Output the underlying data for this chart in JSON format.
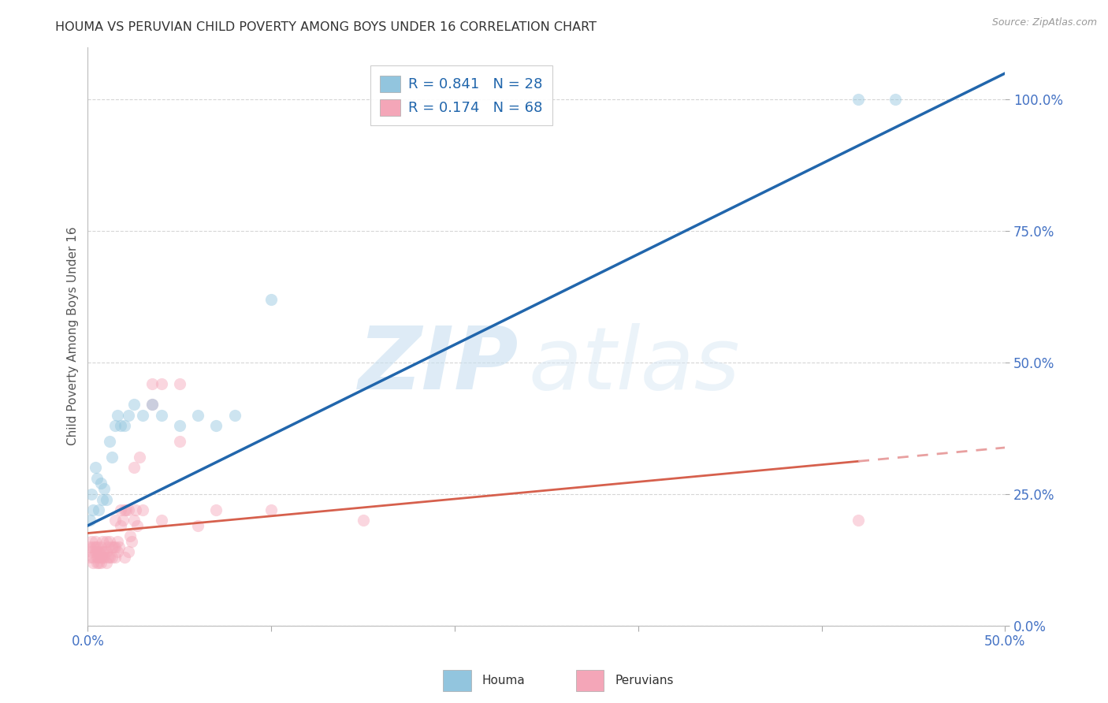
{
  "title": "HOUMA VS PERUVIAN CHILD POVERTY AMONG BOYS UNDER 16 CORRELATION CHART",
  "source": "Source: ZipAtlas.com",
  "ylabel": "Child Poverty Among Boys Under 16",
  "xlim": [
    0.0,
    0.5
  ],
  "ylim": [
    0.0,
    1.1
  ],
  "xticks": [
    0.0,
    0.1,
    0.2,
    0.3,
    0.4,
    0.5
  ],
  "xticklabels_show": [
    "0.0%",
    "",
    "",
    "",
    "",
    "50.0%"
  ],
  "yticks": [
    0.0,
    0.25,
    0.5,
    0.75,
    1.0
  ],
  "yticklabels": [
    "0.0%",
    "25.0%",
    "50.0%",
    "75.0%",
    "100.0%"
  ],
  "houma_color": "#92c5de",
  "peruvian_color": "#f4a6b8",
  "houma_line_color": "#2166ac",
  "peruvian_line_color": "#d6604d",
  "peruvian_line_color_dash": "#e8a0a0",
  "legend_r1": "R = 0.841   N = 28",
  "legend_r2": "R = 0.174   N = 68",
  "legend_label1": "Houma",
  "legend_label2": "Peruvians",
  "watermark_zip": "ZIP",
  "watermark_atlas": "atlas",
  "houma_x": [
    0.001,
    0.002,
    0.003,
    0.004,
    0.005,
    0.006,
    0.007,
    0.008,
    0.009,
    0.01,
    0.012,
    0.013,
    0.015,
    0.016,
    0.018,
    0.02,
    0.022,
    0.025,
    0.03,
    0.035,
    0.04,
    0.05,
    0.06,
    0.07,
    0.08,
    0.1,
    0.42,
    0.44
  ],
  "houma_y": [
    0.2,
    0.25,
    0.22,
    0.3,
    0.28,
    0.22,
    0.27,
    0.24,
    0.26,
    0.24,
    0.35,
    0.32,
    0.38,
    0.4,
    0.38,
    0.38,
    0.4,
    0.42,
    0.4,
    0.42,
    0.4,
    0.38,
    0.4,
    0.38,
    0.4,
    0.62,
    1.0,
    1.0
  ],
  "peruvian_x": [
    0.001,
    0.001,
    0.002,
    0.002,
    0.003,
    0.003,
    0.003,
    0.004,
    0.004,
    0.004,
    0.005,
    0.005,
    0.005,
    0.005,
    0.006,
    0.006,
    0.006,
    0.007,
    0.007,
    0.007,
    0.008,
    0.008,
    0.008,
    0.009,
    0.009,
    0.01,
    0.01,
    0.01,
    0.011,
    0.011,
    0.012,
    0.012,
    0.013,
    0.013,
    0.014,
    0.015,
    0.015,
    0.015,
    0.016,
    0.016,
    0.017,
    0.018,
    0.018,
    0.019,
    0.02,
    0.02,
    0.021,
    0.022,
    0.022,
    0.023,
    0.024,
    0.025,
    0.025,
    0.026,
    0.027,
    0.028,
    0.03,
    0.035,
    0.035,
    0.04,
    0.04,
    0.05,
    0.05,
    0.06,
    0.07,
    0.1,
    0.15,
    0.42
  ],
  "peruvian_y": [
    0.13,
    0.15,
    0.14,
    0.16,
    0.12,
    0.13,
    0.15,
    0.14,
    0.15,
    0.16,
    0.12,
    0.13,
    0.14,
    0.15,
    0.12,
    0.13,
    0.14,
    0.12,
    0.13,
    0.15,
    0.13,
    0.14,
    0.16,
    0.13,
    0.14,
    0.12,
    0.14,
    0.16,
    0.13,
    0.15,
    0.13,
    0.16,
    0.13,
    0.15,
    0.15,
    0.13,
    0.15,
    0.2,
    0.14,
    0.16,
    0.15,
    0.19,
    0.22,
    0.2,
    0.13,
    0.22,
    0.22,
    0.14,
    0.22,
    0.17,
    0.16,
    0.2,
    0.3,
    0.22,
    0.19,
    0.32,
    0.22,
    0.42,
    0.46,
    0.2,
    0.46,
    0.35,
    0.46,
    0.19,
    0.22,
    0.22,
    0.2,
    0.2
  ],
  "background_color": "#ffffff",
  "grid_color": "#cccccc",
  "title_color": "#333333",
  "axis_label_color": "#555555",
  "tick_color": "#4472c4",
  "marker_size": 120,
  "marker_alpha": 0.45
}
